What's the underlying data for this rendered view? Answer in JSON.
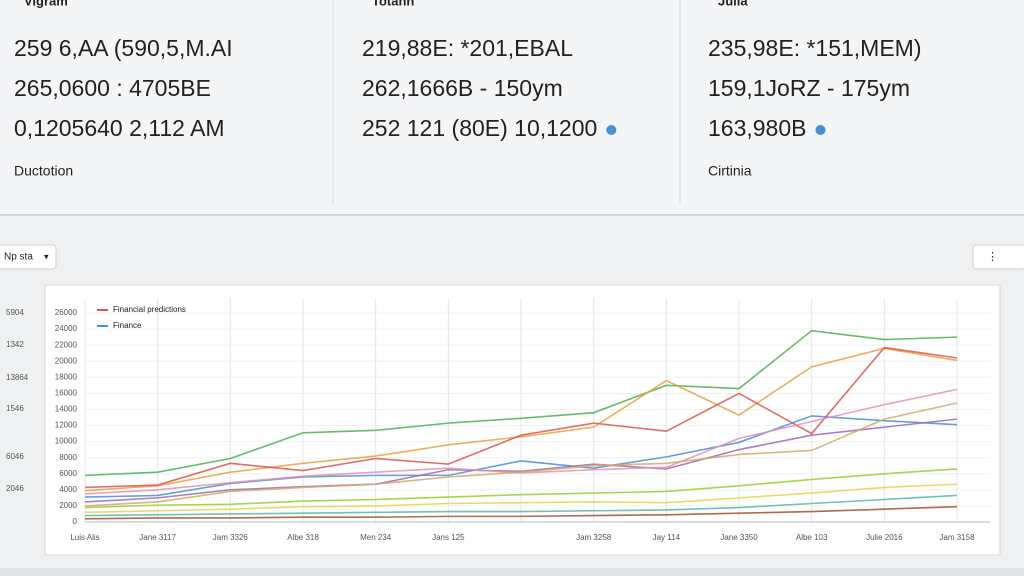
{
  "stats": [
    {
      "header": "Vigram",
      "lines": [
        "259 6,AA (590,5,M.AI",
        "265,0600 : 4705BE",
        "0,1205640 2,112 AM"
      ],
      "link": "Ductotion"
    },
    {
      "header": "Totann",
      "lines": [
        "219,88E: *201,EBAL",
        "262,1666B - 150ym",
        "252 121 (80E) 10,1200"
      ]
    },
    {
      "header": "Julia",
      "lines": [
        "235,98E: *151,MEM)",
        "159,1JoRZ - 175ym",
        "163,980B"
      ],
      "link": "Cirtinia"
    }
  ],
  "controls": {
    "dropdown": "Np sta",
    "button": "⋮"
  },
  "side_labels": [
    "5904",
    "1342",
    "13864",
    "1546",
    "6046",
    "2046"
  ],
  "chart_data": {
    "type": "line",
    "categories": [
      "Luis Alis",
      "Jane 3117",
      "Jam 3326",
      "Albe 318",
      "Men 234",
      "Jans 125",
      null,
      "Jam 3258",
      "Jay 114",
      "Jane 3350",
      "Albe 103",
      "Julie 2016",
      "Jam 3158"
    ],
    "ylim": [
      0,
      26000
    ],
    "yticks": [
      0,
      2000,
      4000,
      6000,
      8000,
      10000,
      12000,
      14000,
      16000,
      18000,
      20000,
      22000,
      24000,
      26000
    ],
    "grid": true,
    "legend": "top-left",
    "series": [
      {
        "color": "#4caf50",
        "values": [
          5800,
          6200,
          7900,
          11100,
          11400,
          12300,
          12900,
          13600,
          17000,
          16600,
          23800,
          22700,
          23000
        ]
      },
      {
        "color": "#e8a040",
        "values": [
          3900,
          4500,
          6200,
          7300,
          8200,
          9600,
          10600,
          11800,
          17600,
          13300,
          19300,
          21600,
          20100
        ]
      },
      {
        "name": "Financial predictions",
        "color": "#d9534f",
        "values": [
          4300,
          4600,
          7300,
          6400,
          7900,
          7200,
          10800,
          12300,
          11300,
          16000,
          11000,
          21700,
          20400
        ]
      },
      {
        "name": "Finance",
        "color": "#4a8fd0",
        "values": [
          3100,
          3300,
          4800,
          5600,
          5800,
          5800,
          7600,
          6700,
          8100,
          9900,
          13200,
          12600,
          12100
        ]
      },
      {
        "color": "#9b6bb5",
        "values": [
          2500,
          3000,
          4000,
          4400,
          4700,
          6500,
          6300,
          7200,
          6600,
          9000,
          10800,
          11800,
          12800
        ]
      },
      {
        "color": "#e58fb0",
        "values": [
          3500,
          4000,
          4900,
          5700,
          6200,
          6700,
          6100,
          6500,
          6800,
          10400,
          12500,
          14600,
          16500
        ]
      },
      {
        "color": "#e6d44a",
        "values": [
          1200,
          1400,
          1600,
          1900,
          2000,
          2300,
          2400,
          2500,
          2400,
          3000,
          3600,
          4300,
          4700
        ]
      },
      {
        "color": "#d4a96a",
        "values": [
          2000,
          2500,
          3800,
          4300,
          4700,
          5600,
          6200,
          7000,
          7300,
          8400,
          8900,
          12800,
          14800
        ]
      },
      {
        "color": "#5bb5a8",
        "values": [
          800,
          900,
          1000,
          1100,
          1200,
          1300,
          1300,
          1400,
          1500,
          1800,
          2300,
          2800,
          3300
        ]
      },
      {
        "color": "#9acd32",
        "values": [
          1800,
          2100,
          2200,
          2600,
          2800,
          3100,
          3400,
          3600,
          3800,
          4500,
          5300,
          6000,
          6600
        ]
      },
      {
        "color": "#a0522d",
        "values": [
          400,
          500,
          500,
          600,
          600,
          700,
          700,
          800,
          900,
          1100,
          1300,
          1600,
          1900
        ]
      }
    ]
  }
}
